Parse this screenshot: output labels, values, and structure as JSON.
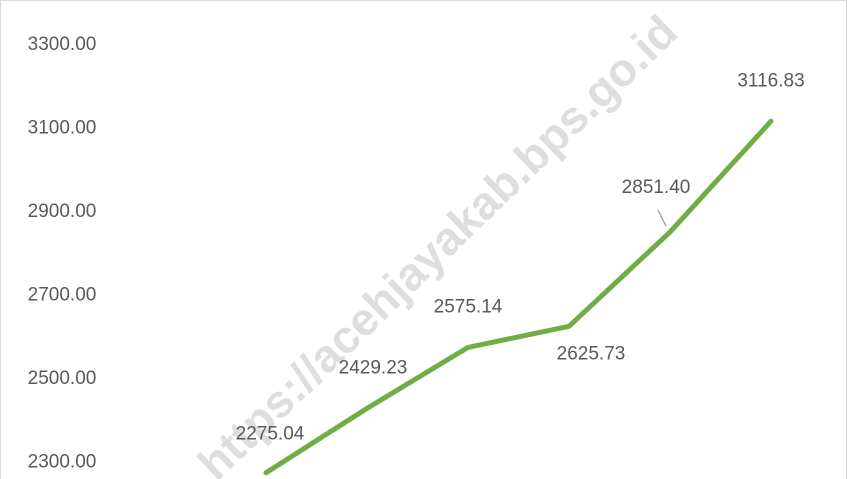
{
  "chart_data": {
    "type": "line",
    "watermark": "https://acehjayakab.bps.go.id",
    "categories": [
      null,
      null,
      null,
      null,
      null,
      null
    ],
    "series": [
      {
        "color": "#70ad47",
        "values": [
          2275.04,
          2429.23,
          2575.14,
          2625.73,
          2851.4,
          3116.83
        ],
        "value_labels": [
          "2275.04",
          "2429.23",
          "2575.14",
          "2625.73",
          "2851.40",
          "3116.83"
        ]
      }
    ],
    "ylim": [
      2260,
      3400
    ],
    "yticks": [
      {
        "value": 2300,
        "label": "2300.00"
      },
      {
        "value": 2500,
        "label": "2500.00"
      },
      {
        "value": 2700,
        "label": "2700.00"
      },
      {
        "value": 2900,
        "label": "2900.00"
      },
      {
        "value": 3100,
        "label": "3100.00"
      },
      {
        "value": 3300,
        "label": "3300.00"
      }
    ],
    "grid": false
  }
}
